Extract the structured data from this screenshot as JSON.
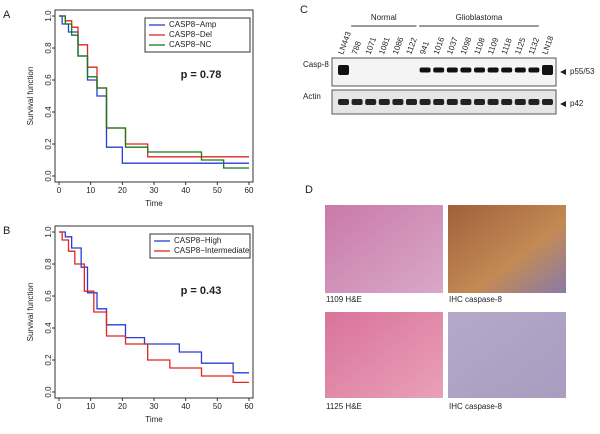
{
  "chart_data": [
    {
      "type": "step",
      "panel": "A",
      "ylabel": "Survival function",
      "xlabel": "Time",
      "annotation": "p = 0.78",
      "xlim": [
        0,
        60
      ],
      "ylim": [
        0,
        1
      ],
      "xticks": [
        0,
        10,
        20,
        30,
        40,
        50,
        60
      ],
      "yticks": [
        {
          "value": 0,
          "label": "0.0"
        },
        0.2,
        0.4,
        0.6,
        0.8,
        {
          "value": 1,
          "label": "1.0"
        }
      ],
      "legend": "top-right",
      "series": [
        {
          "name": "CASP8−Amp",
          "color": "#2a3cd8",
          "x": [
            0,
            1,
            3,
            6,
            9,
            12,
            15,
            20,
            60
          ],
          "values": [
            1,
            0.95,
            0.9,
            0.75,
            0.6,
            0.5,
            0.18,
            0.08,
            0.08
          ]
        },
        {
          "name": "CASP8−Del",
          "color": "#e0261e",
          "x": [
            0,
            2,
            4,
            6,
            9,
            12,
            15,
            21,
            28,
            60
          ],
          "values": [
            1,
            0.97,
            0.93,
            0.82,
            0.68,
            0.55,
            0.3,
            0.2,
            0.12,
            0.12
          ]
        },
        {
          "name": "CASP8−NC",
          "color": "#1a7a1a",
          "x": [
            0,
            2,
            4,
            6,
            9,
            12,
            15,
            21,
            28,
            45,
            52,
            60
          ],
          "values": [
            1,
            0.95,
            0.88,
            0.75,
            0.62,
            0.55,
            0.3,
            0.18,
            0.15,
            0.1,
            0.05,
            0.05
          ]
        }
      ]
    },
    {
      "type": "step",
      "panel": "B",
      "ylabel": "Survival function",
      "xlabel": "Time",
      "annotation": "p = 0.43",
      "xlim": [
        0,
        60
      ],
      "ylim": [
        0,
        1
      ],
      "xticks": [
        0,
        10,
        20,
        30,
        40,
        50,
        60
      ],
      "yticks": [
        {
          "value": 0,
          "label": "0.0"
        },
        0.2,
        0.4,
        0.6,
        0.8,
        {
          "value": 1,
          "label": "1.0"
        }
      ],
      "legend": "top-right",
      "series": [
        {
          "name": "CASP8−High",
          "color": "#2a3cd8",
          "x": [
            0,
            2,
            4,
            7,
            9,
            12,
            15,
            21,
            27,
            38,
            45,
            55,
            60
          ],
          "values": [
            1,
            0.97,
            0.9,
            0.78,
            0.62,
            0.52,
            0.42,
            0.34,
            0.3,
            0.25,
            0.18,
            0.12,
            0.12
          ]
        },
        {
          "name": "CASP8−Intermediate",
          "color": "#e0261e",
          "x": [
            0,
            1,
            3,
            5,
            8,
            11,
            15,
            21,
            28,
            35,
            45,
            55,
            60
          ],
          "values": [
            1,
            0.95,
            0.88,
            0.8,
            0.63,
            0.5,
            0.35,
            0.3,
            0.2,
            0.15,
            0.1,
            0.06,
            0.06
          ]
        }
      ]
    }
  ],
  "blot": {
    "panel": "C",
    "groups": [
      "Normal",
      "Glioblastoma"
    ],
    "lanes": [
      "LN443",
      "788",
      "1071",
      "1081",
      "1086",
      "1122",
      "941",
      "1016",
      "1037",
      "1098",
      "1108",
      "1109",
      "1118",
      "1125",
      "1132",
      "LN18"
    ],
    "rows": [
      "Casp-8",
      "Actin"
    ],
    "markers": [
      "p55/53",
      "p42"
    ]
  },
  "histology": {
    "panel": "D",
    "captions": [
      "1109 H&E",
      "IHC caspase-8",
      "1125 H&E",
      "IHC caspase-8"
    ]
  }
}
